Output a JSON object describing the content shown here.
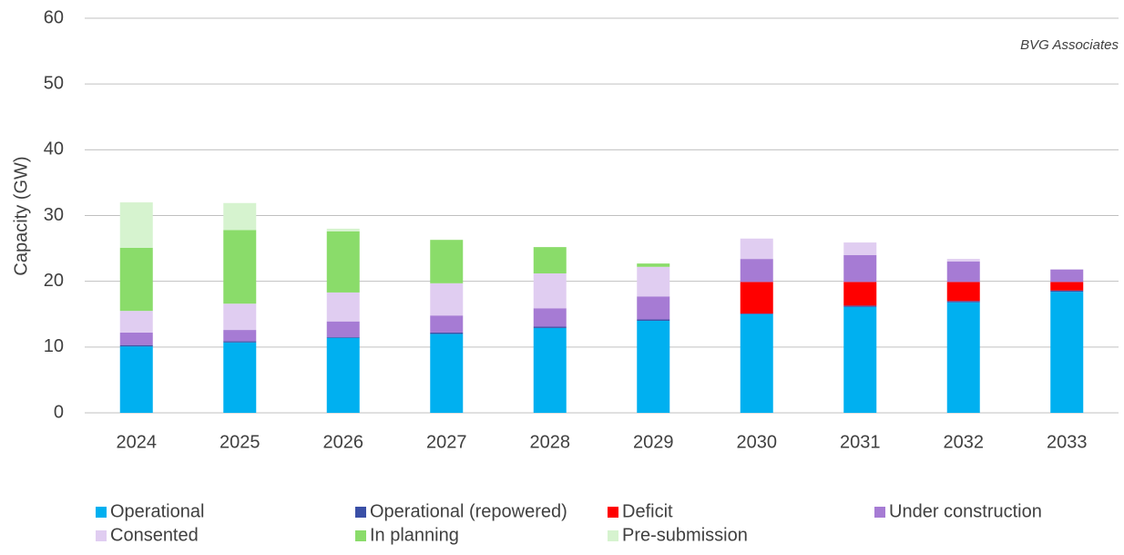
{
  "chart_data": {
    "type": "stacked_bar",
    "y_label": "Capacity (GW)",
    "annotation": "BVG Associates",
    "categories": [
      "2024",
      "2025",
      "2026",
      "2027",
      "2028",
      "2029",
      "2030",
      "2031",
      "2032",
      "2033"
    ],
    "series": [
      {
        "name": "Operational",
        "color": "#00b0f0",
        "values": [
          10.1,
          10.7,
          11.4,
          12.0,
          12.9,
          14.0,
          15.0,
          16.1,
          16.8,
          18.4
        ]
      },
      {
        "name": "Operational (repowered)",
        "color": "#3a4fa6",
        "values": [
          0.2,
          0.2,
          0.1,
          0.2,
          0.2,
          0.2,
          0.1,
          0.2,
          0.2,
          0.2
        ]
      },
      {
        "name": "Deficit",
        "color": "#ff0000",
        "values": [
          0,
          0,
          0,
          0,
          0,
          0,
          4.8,
          3.6,
          2.9,
          1.3
        ]
      },
      {
        "name": "Under construction",
        "color": "#a67bd4",
        "values": [
          1.9,
          1.7,
          2.4,
          2.6,
          2.8,
          3.5,
          3.5,
          4.1,
          3.1,
          1.9
        ]
      },
      {
        "name": "Consented",
        "color": "#e0cdf1",
        "values": [
          3.3,
          4.0,
          4.4,
          4.9,
          5.3,
          4.5,
          3.1,
          1.9,
          0.4,
          0
        ]
      },
      {
        "name": "In planning",
        "color": "#8adc6a",
        "values": [
          9.6,
          11.2,
          9.3,
          6.6,
          4.0,
          0.5,
          0,
          0,
          0,
          0
        ]
      },
      {
        "name": "Pre-submission",
        "color": "#d6f3cf",
        "values": [
          6.9,
          4.1,
          0.4,
          0,
          0,
          0,
          0,
          0,
          0,
          0
        ]
      }
    ],
    "ylim": [
      0,
      60
    ],
    "yticks": [
      0,
      10,
      20,
      30,
      40,
      50,
      60
    ],
    "grid": true
  }
}
